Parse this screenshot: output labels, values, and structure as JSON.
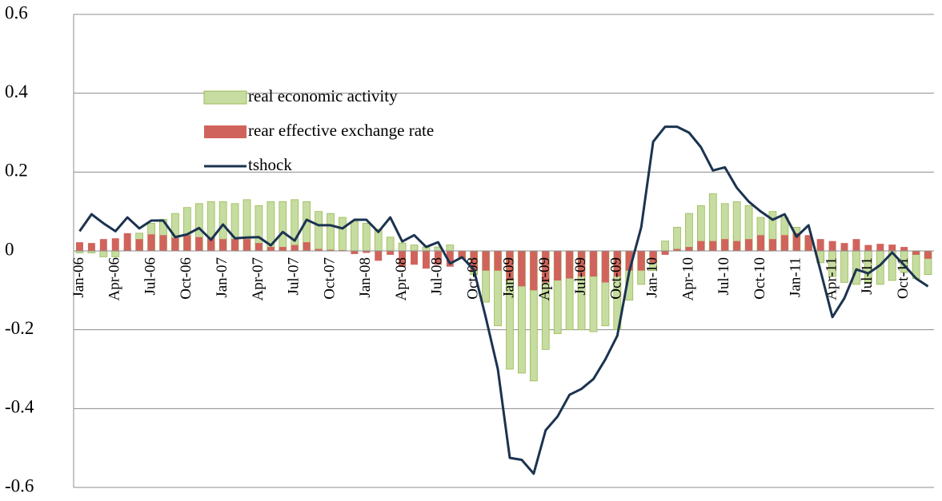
{
  "chart_data": {
    "type": "bar-line",
    "categories": [
      "Jan-06",
      null,
      null,
      "Apr-06",
      null,
      null,
      "Jul-06",
      null,
      null,
      "Oct-06",
      null,
      null,
      "Jan-07",
      null,
      null,
      "Apr-07",
      null,
      null,
      "Jul-07",
      null,
      null,
      "Oct-07",
      null,
      null,
      "Jan-08",
      null,
      null,
      "Apr-08",
      null,
      null,
      "Jul-08",
      null,
      null,
      "Oct-08",
      null,
      null,
      "Jan-09",
      null,
      null,
      "Apr-09",
      null,
      null,
      "Jul-09",
      null,
      null,
      "Oct-09",
      null,
      null,
      "Jan-10",
      null,
      null,
      "Apr-10",
      null,
      null,
      "Jul-10",
      null,
      null,
      "Oct-10",
      null,
      null,
      "Jan-11",
      null,
      null,
      "Apr-11",
      null,
      null,
      "Jul-11",
      null,
      null,
      "Oct-11",
      null,
      null
    ],
    "series": [
      {
        "name": "real economic activity",
        "type": "bar",
        "color": "#c6dca0",
        "stroke": "#9bbb59",
        "values": [
          -0.005,
          -0.005,
          -0.015,
          -0.015,
          0.005,
          0.045,
          0.07,
          0.08,
          0.095,
          0.11,
          0.12,
          0.125,
          0.125,
          0.12,
          0.13,
          0.115,
          0.125,
          0.125,
          0.13,
          0.125,
          0.1,
          0.095,
          0.085,
          0.075,
          0.07,
          0.055,
          0.035,
          0.02,
          0.015,
          0.01,
          0.01,
          0.015,
          -0.02,
          -0.06,
          -0.13,
          -0.19,
          -0.3,
          -0.31,
          -0.33,
          -0.25,
          -0.21,
          -0.2,
          -0.2,
          -0.205,
          -0.19,
          -0.2,
          -0.125,
          -0.085,
          -0.05,
          0.025,
          0.06,
          0.095,
          0.115,
          0.145,
          0.12,
          0.125,
          0.115,
          0.085,
          0.1,
          0.085,
          0.06,
          0.035,
          -0.03,
          -0.065,
          -0.08,
          -0.085,
          -0.08,
          -0.085,
          -0.075,
          -0.055,
          -0.07,
          -0.06
        ]
      },
      {
        "name": "rear effective exchange rate",
        "type": "bar",
        "color": "#d0645c",
        "values": [
          0.022,
          0.02,
          0.03,
          0.032,
          0.045,
          0.03,
          0.042,
          0.04,
          0.033,
          0.04,
          0.035,
          0.035,
          0.03,
          0.03,
          0.03,
          0.02,
          0.01,
          0.01,
          0.015,
          0.022,
          0.005,
          0.003,
          0.002,
          -0.008,
          -0.005,
          -0.025,
          -0.01,
          -0.04,
          -0.035,
          -0.045,
          -0.035,
          -0.04,
          -0.02,
          -0.05,
          -0.05,
          -0.05,
          -0.075,
          -0.09,
          -0.1,
          -0.08,
          -0.075,
          -0.07,
          -0.065,
          -0.065,
          -0.08,
          -0.065,
          -0.05,
          -0.05,
          -0.03,
          -0.01,
          0.005,
          0.01,
          0.025,
          0.025,
          0.03,
          0.025,
          0.03,
          0.04,
          0.03,
          0.04,
          0.045,
          0.04,
          0.03,
          0.025,
          0.02,
          0.03,
          0.015,
          0.018,
          0.016,
          0.01,
          -0.01,
          -0.02
        ]
      },
      {
        "name": "tshock",
        "type": "line",
        "color": "#1b3350",
        "values": [
          0.05,
          0.093,
          0.07,
          0.05,
          0.085,
          0.057,
          0.077,
          0.077,
          0.035,
          0.042,
          0.058,
          0.028,
          0.067,
          0.032,
          0.034,
          0.035,
          0.014,
          0.048,
          0.026,
          0.079,
          0.065,
          0.065,
          0.057,
          0.079,
          0.079,
          0.048,
          0.085,
          0.024,
          0.04,
          0.01,
          0.022,
          -0.032,
          -0.016,
          -0.048,
          -0.17,
          -0.3,
          -0.525,
          -0.53,
          -0.565,
          -0.455,
          -0.42,
          -0.365,
          -0.35,
          -0.325,
          -0.275,
          -0.215,
          -0.052,
          0.06,
          0.277,
          0.315,
          0.315,
          0.3,
          0.263,
          0.204,
          0.212,
          0.16,
          0.125,
          0.1,
          0.079,
          0.093,
          0.036,
          0.065,
          -0.05,
          -0.168,
          -0.12,
          -0.047,
          -0.057,
          -0.036,
          -0.004,
          -0.036,
          -0.07,
          -0.09
        ]
      }
    ],
    "ylim": [
      -0.6,
      0.6
    ],
    "yticks": [
      -0.6,
      -0.4,
      -0.2,
      0,
      0.2,
      0.4,
      0.6
    ],
    "grid": true,
    "legend": "left"
  }
}
